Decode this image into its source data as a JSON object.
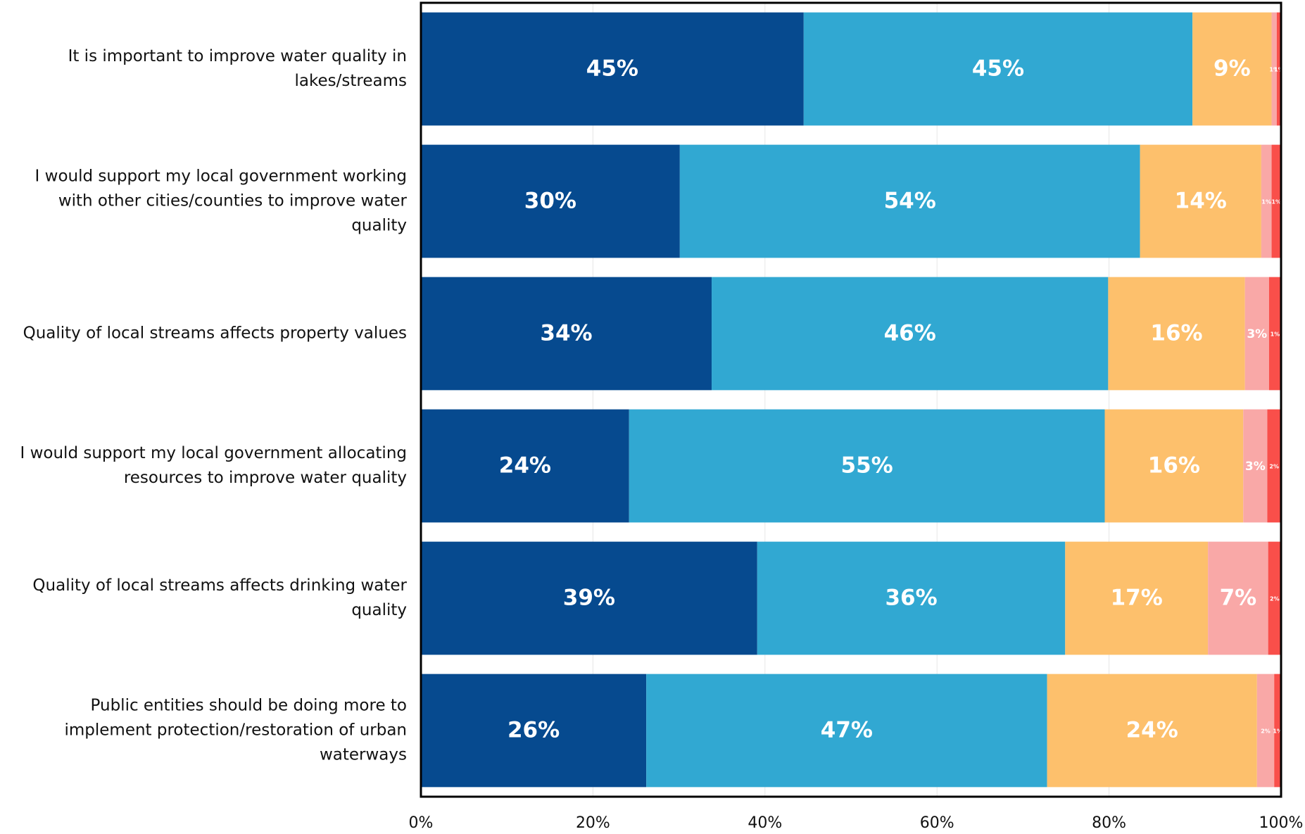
{
  "chart_data": {
    "type": "stacked-bar-horizontal",
    "categories": [
      "It is important to improve water quality in lakes/streams",
      "I would support my local government working with other cities/counties to improve water quality",
      "Quality of local streams affects property values",
      "I would support my local government allocating resources to improve water quality",
      "Quality of local streams affects drinking water quality",
      "Public entities should be doing more to implement protection/restoration of urban waterways"
    ],
    "series": [
      {
        "color": "#064a8f",
        "values": [
          44.5,
          30.1,
          33.8,
          24.2,
          39.1,
          26.2
        ],
        "value_labels": [
          "45%",
          "30%",
          "34%",
          "24%",
          "39%",
          "26%"
        ]
      },
      {
        "color": "#31a8d2",
        "values": [
          45.2,
          53.5,
          46.1,
          55.3,
          35.8,
          46.6
        ],
        "value_labels": [
          "45%",
          "54%",
          "46%",
          "55%",
          "36%",
          "47%"
        ]
      },
      {
        "color": "#fdc06c",
        "values": [
          9.2,
          14.1,
          15.9,
          16.1,
          16.6,
          24.4
        ],
        "value_labels": [
          "9%",
          "14%",
          "16%",
          "16%",
          "17%",
          "24%"
        ]
      },
      {
        "color": "#f9a8a7",
        "values": [
          0.6,
          1.2,
          2.8,
          2.8,
          7.0,
          2.0
        ],
        "value_labels": [
          "1%",
          "1%",
          "3%",
          "3%",
          "7%",
          "2%"
        ]
      },
      {
        "color": "#f94f4a",
        "values": [
          0.5,
          1.1,
          1.4,
          1.6,
          1.5,
          0.8
        ],
        "value_labels": [
          "1%",
          "1%",
          "1%",
          "2%",
          "2%",
          "1%"
        ]
      }
    ],
    "xlim": [
      0,
      100
    ],
    "xticks": [
      {
        "value": 0,
        "label": "0%"
      },
      {
        "value": 20,
        "label": "20%"
      },
      {
        "value": 40,
        "label": "40%"
      },
      {
        "value": 60,
        "label": "60%"
      },
      {
        "value": 80,
        "label": "80%"
      },
      {
        "value": 100,
        "label": "100%"
      }
    ],
    "grid": true
  }
}
